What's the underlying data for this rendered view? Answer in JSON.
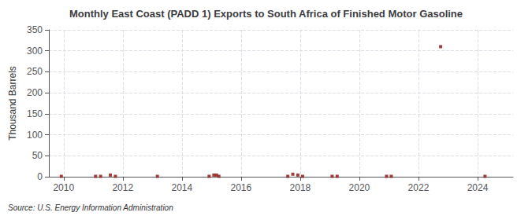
{
  "chart_data": {
    "type": "scatter",
    "title": "Monthly East Coast (PADD 1) Exports to South Africa of Finished Motor Gasoline",
    "ylabel": "Thousand Barrels",
    "annotation": "Source: U.S. Energy Information Administration",
    "x": [
      2009.92,
      2011.08,
      2011.25,
      2011.58,
      2011.75,
      2013.17,
      2014.92,
      2015.08,
      2015.17,
      2015.25,
      2017.58,
      2017.75,
      2017.92,
      2018.08,
      2019.08,
      2019.25,
      2020.92,
      2021.08,
      2022.75,
      2024.25
    ],
    "values": [
      1,
      1,
      1,
      4,
      1,
      1,
      1,
      4,
      4,
      1,
      1,
      6,
      4,
      1,
      1,
      1,
      1,
      1,
      310,
      1
    ],
    "color": "#8b1010",
    "marker": "square",
    "xlim": [
      2009.5,
      2025.2
    ],
    "xticks": [
      2010,
      2012,
      2014,
      2016,
      2018,
      2020,
      2022,
      2024
    ],
    "ylim": [
      0,
      350
    ],
    "yticks": [
      0,
      50,
      100,
      150,
      200,
      250,
      300,
      350
    ],
    "grid": true
  }
}
